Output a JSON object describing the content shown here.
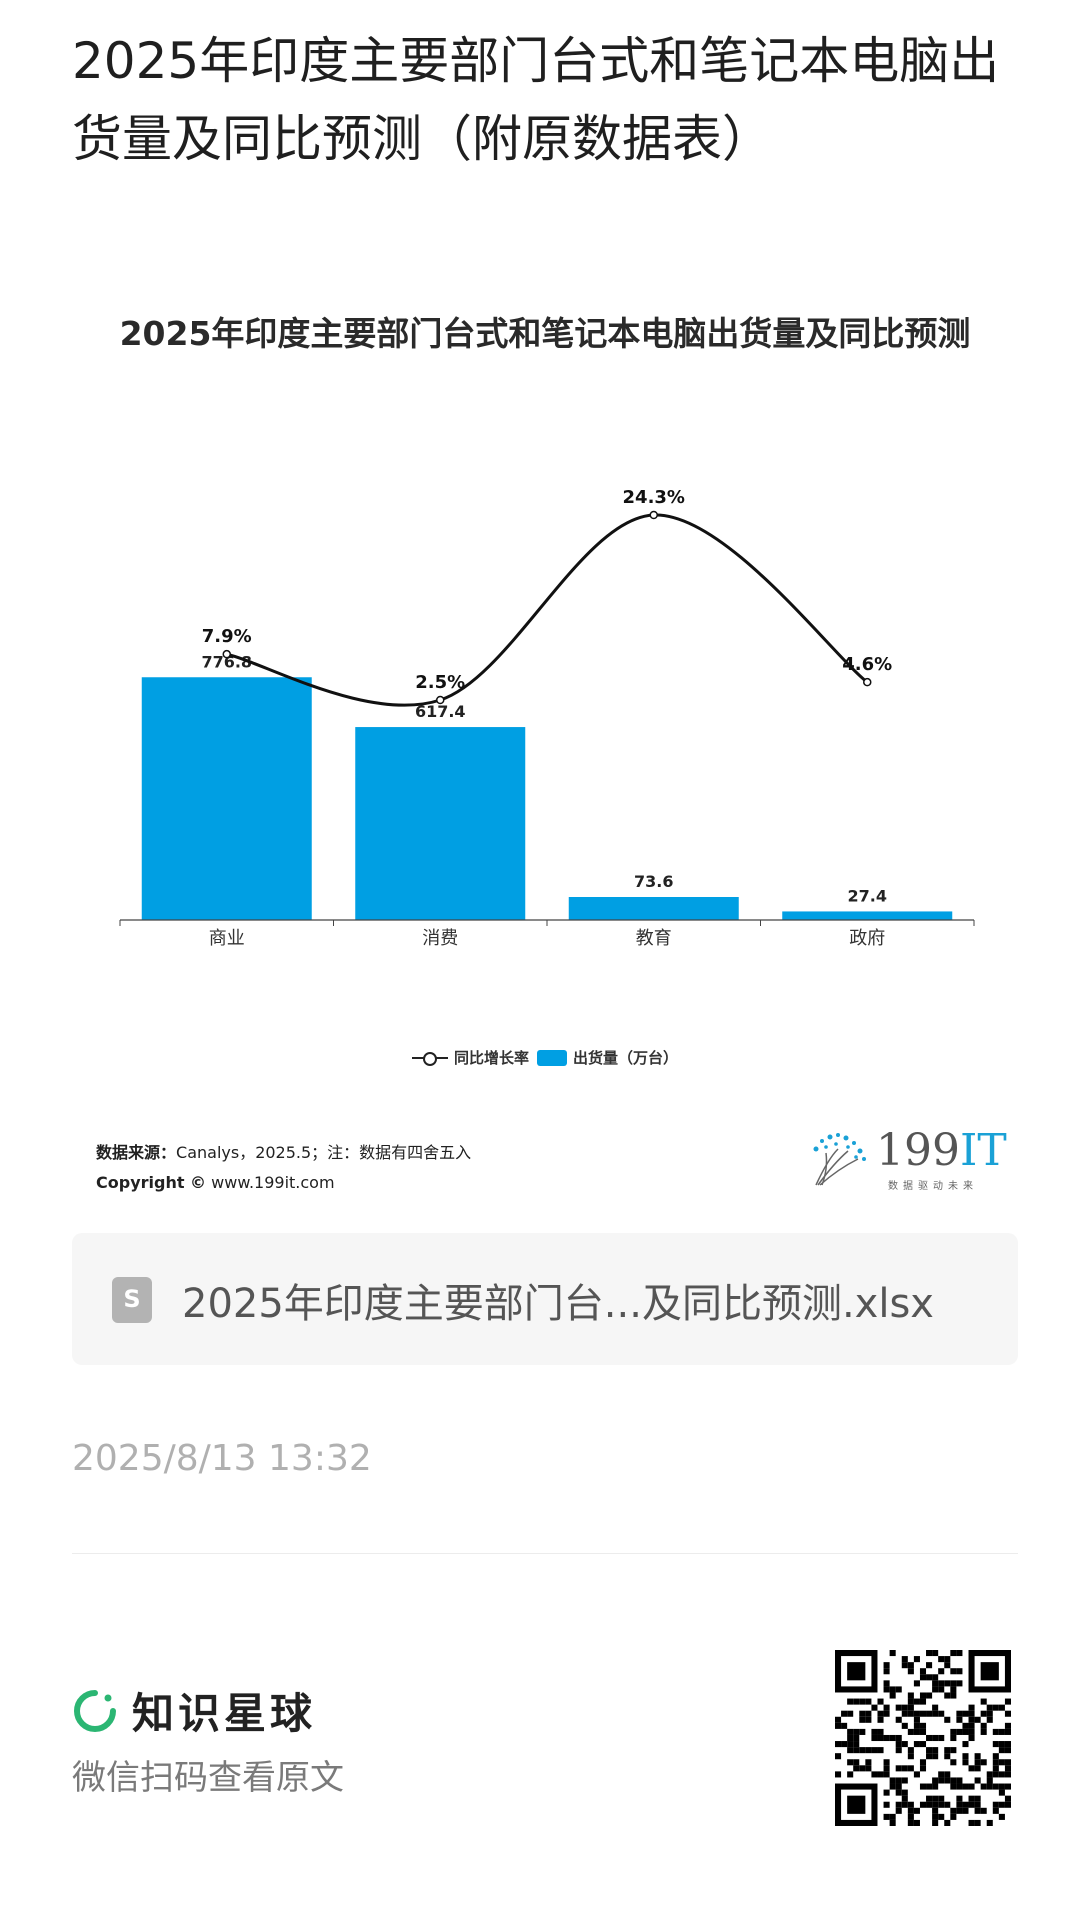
{
  "post": {
    "title": "2025年印度主要部门台式和笔记本电脑出货量及同比预测（附原数据表）"
  },
  "chart_data": {
    "type": "bar",
    "title": "2025年印度主要部门台式和笔记本电脑出货量及同比预测",
    "categories": [
      "商业",
      "消费",
      "教育",
      "政府"
    ],
    "series": [
      {
        "name": "出货量（万台）",
        "type": "bar",
        "values": [
          776.8,
          617.4,
          73.6,
          27.4
        ],
        "labels": [
          "776.8",
          "617.4",
          "73.6",
          "27.4"
        ],
        "color": "#009fe3"
      },
      {
        "name": "同比增长率",
        "type": "line",
        "values": [
          7.9,
          2.5,
          24.3,
          4.6
        ],
        "labels": [
          "7.9%",
          "2.5%",
          "24.3%",
          "4.6%"
        ],
        "color": "#111111"
      }
    ],
    "legend": [
      "同比增长率",
      "出货量（万台）"
    ],
    "legend_position": "bottom",
    "grid": false
  },
  "footer": {
    "source_label": "数据来源：",
    "source_text": "Canalys，2025.5；注：数据有四舍五入",
    "copyright_label": "Copyright ©",
    "copyright_text": "www.199it.com",
    "logo_main": "199",
    "logo_accent": "IT",
    "logo_tagline": "数据驱动未来"
  },
  "file": {
    "name": "2025年印度主要部门台...及同比预测.xlsx"
  },
  "timestamp": "2025/8/13 13:32",
  "brand": {
    "name": "知识星球",
    "scan_hint": "微信扫码查看原文"
  },
  "colors": {
    "bar": "#009fe3",
    "line": "#111111",
    "brand_green": "#2bb673"
  }
}
